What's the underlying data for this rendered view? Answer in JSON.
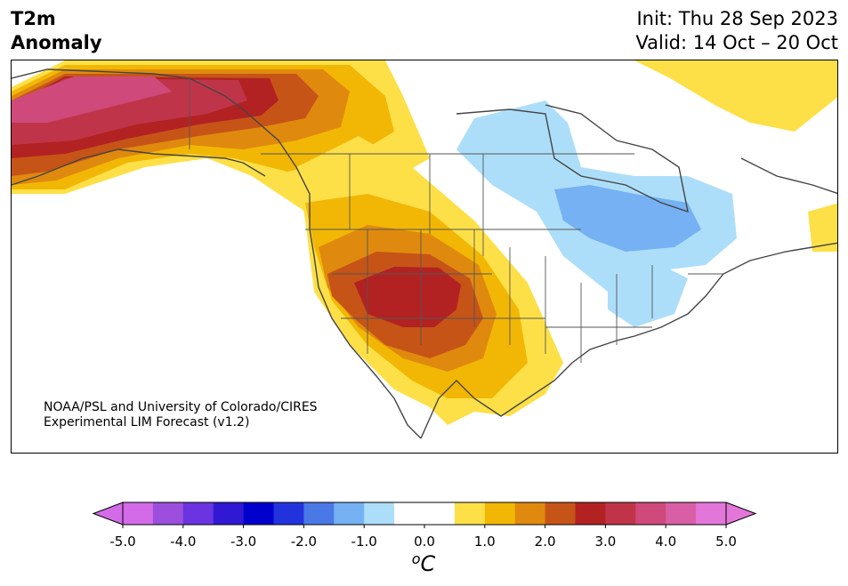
{
  "title": {
    "variable": "T2m\nAnomaly",
    "init": "Init: Thu 28 Sep 2023",
    "valid": "Valid: 14 Oct – 20 Oct"
  },
  "credit": {
    "line1": "NOAA/PSL and University of Colorado/CIRES",
    "line2": "Experimental LIM Forecast (v1.2)"
  },
  "colorbar": {
    "unit": "oC",
    "ticks": [
      "-5.0",
      "-4.0",
      "-3.0",
      "-2.0",
      "-1.0",
      "0.0",
      "1.0",
      "2.0",
      "3.0",
      "4.0",
      "5.0"
    ],
    "colors": [
      "#d36be8",
      "#9b4fdc",
      "#6a34e0",
      "#3119d3",
      "#0000cc",
      "#2233dd",
      "#4a78e6",
      "#75b1f3",
      "#addef9",
      "#ffffff",
      "#ffffff",
      "#fde047",
      "#f2b705",
      "#df8a0e",
      "#c65417",
      "#b22222",
      "#c0344a",
      "#cf4a7a",
      "#d85fa6",
      "#e377d9"
    ]
  },
  "map": {
    "region": "North America",
    "fill_colors": {
      "ocean": "#ffffff",
      "pos_05": "#fde047",
      "pos_10": "#f2b705",
      "pos_15": "#df8a0e",
      "pos_20": "#c65417",
      "pos_25": "#b22222",
      "pos_30": "#c0344a",
      "pos_35": "#cf4a7a",
      "pos_40": "#d85fa6",
      "neg_05": "#addef9",
      "neg_10": "#75b1f3"
    }
  }
}
